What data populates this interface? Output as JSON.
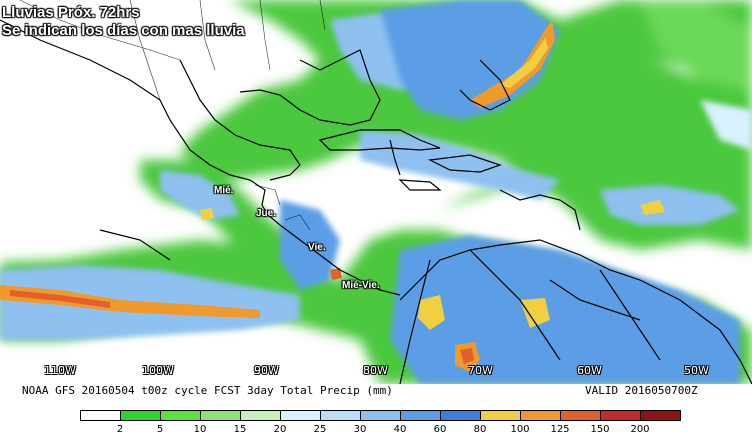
{
  "map": {
    "title_line1": "Lluvias Próx. 72hrs",
    "title_line2": "Se indican los días con mas lluvia",
    "day_labels": [
      "Mié.",
      "Jue.",
      "Vie.",
      "Mié-Vie."
    ],
    "longitude_labels": [
      "110W",
      "100W",
      "90W",
      "80W",
      "70W",
      "60W",
      "50W"
    ],
    "info_left": "NOAA GFS 20160504 t00z cycle FCST 3day Total Precip (mm)",
    "info_right": "VALID 2016050700Z",
    "legend": {
      "ticks": [
        "2",
        "5",
        "10",
        "15",
        "20",
        "25",
        "30",
        "40",
        "60",
        "80",
        "100",
        "125",
        "150",
        "200"
      ],
      "colors": [
        "#ffffff",
        "#2fd42f",
        "#58e23e",
        "#8ee27a",
        "#c8f0b8",
        "#d8f0ff",
        "#b8dcfa",
        "#8ec0f0",
        "#5c9ee6",
        "#3c7ee0",
        "#f0d040",
        "#f09a2c",
        "#e2602a",
        "#c82828",
        "#8c1414"
      ]
    }
  }
}
